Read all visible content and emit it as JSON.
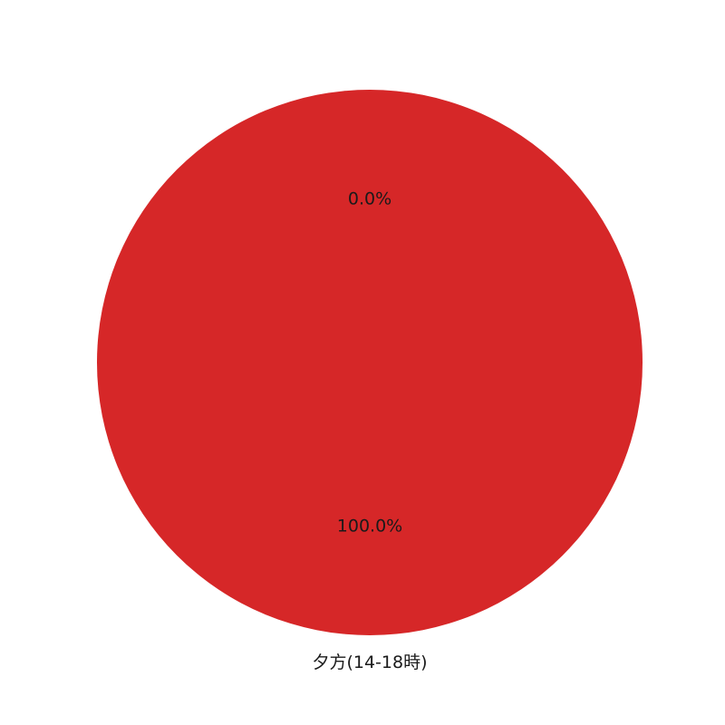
{
  "chart_data": {
    "type": "pie",
    "title": "",
    "categories": [
      "",
      "夕方(14-18時)"
    ],
    "values": [
      0.0,
      100.0
    ],
    "labels": [
      "0.0%",
      "100.0%"
    ],
    "colors": [
      "#d62728",
      "#d62728"
    ],
    "legend": "none",
    "start_angle": "top",
    "direction": "clockwise"
  }
}
